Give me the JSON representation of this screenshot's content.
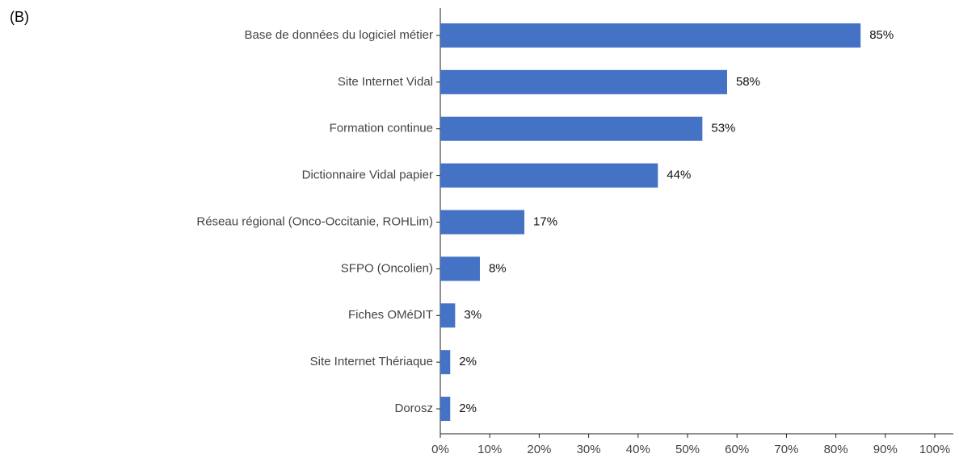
{
  "chart_data": {
    "type": "barh",
    "title": "(B)",
    "categories": [
      "Base de données du logiciel métier",
      "Site Internet Vidal",
      "Formation continue",
      "Dictionnaire Vidal papier",
      "Réseau régional (Onco-Occitanie, ROHLim)",
      "SFPO (Oncolien)",
      "Fiches OMéDIT",
      "Site Internet Thériaque",
      "Dorosz"
    ],
    "values": [
      85,
      58,
      53,
      44,
      17,
      8,
      3,
      2,
      2
    ],
    "value_labels": [
      "85%",
      "58%",
      "53%",
      "44%",
      "17%",
      "8%",
      "3%",
      "2%",
      "2%"
    ],
    "color": "#4472c4",
    "xlim": [
      0,
      100
    ],
    "xticks": [
      {
        "value": 0,
        "label": "0%"
      },
      {
        "value": 10,
        "label": "10%"
      },
      {
        "value": 20,
        "label": "20%"
      },
      {
        "value": 30,
        "label": "30%"
      },
      {
        "value": 40,
        "label": "40%"
      },
      {
        "value": 50,
        "label": "50%"
      },
      {
        "value": 60,
        "label": "60%"
      },
      {
        "value": 70,
        "label": "70%"
      },
      {
        "value": 80,
        "label": "80%"
      },
      {
        "value": 90,
        "label": "90%"
      },
      {
        "value": 100,
        "label": "100%"
      }
    ],
    "grid": false
  }
}
